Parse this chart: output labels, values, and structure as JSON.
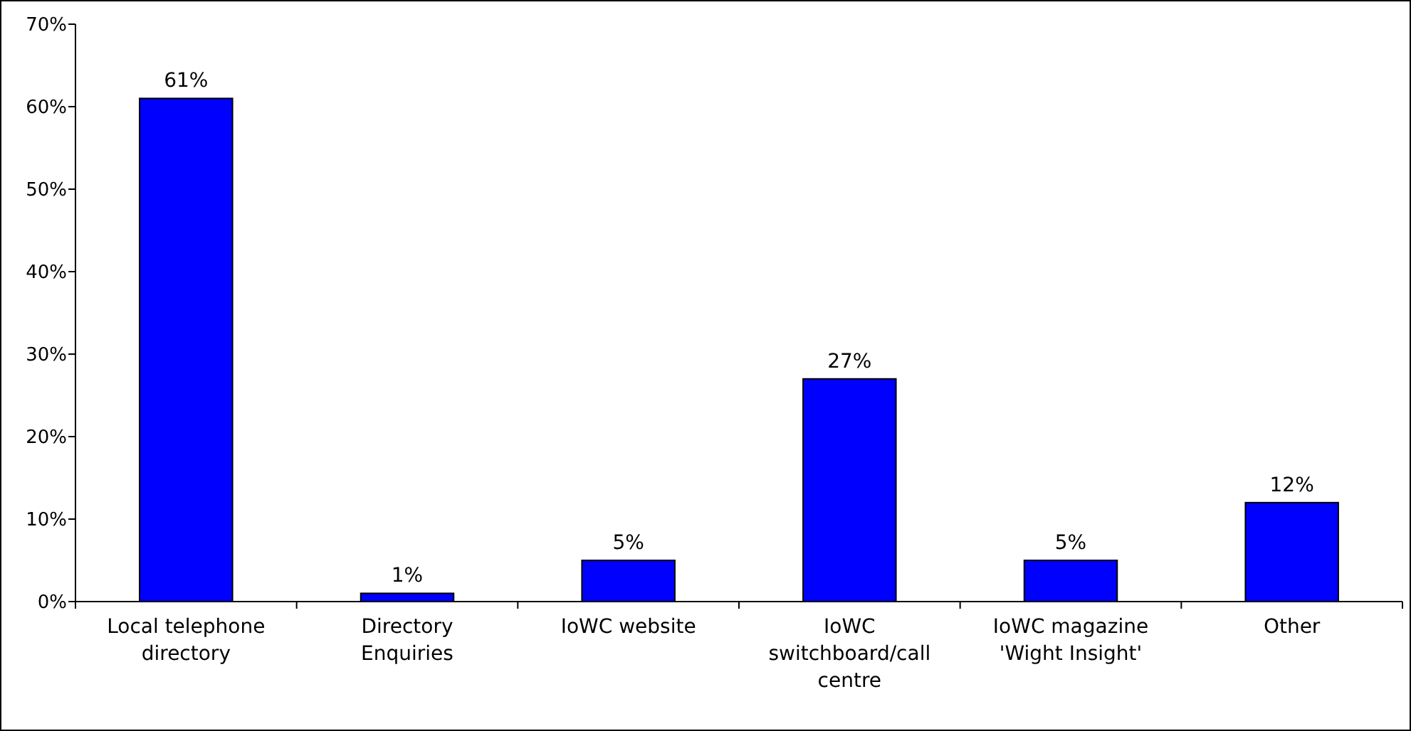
{
  "chart_data": {
    "type": "bar",
    "categories": [
      "Local telephone directory",
      "Directory Enquiries",
      "IoWC website",
      "IoWC switchboard/call centre",
      "IoWC magazine 'Wight Insight'",
      "Other"
    ],
    "values": [
      61,
      1,
      5,
      27,
      5,
      12
    ],
    "color": "#0000ff",
    "ylim": [
      0,
      70
    ],
    "yticks": [
      {
        "value": 0,
        "label": "0%"
      },
      {
        "value": 10,
        "label": "10%"
      },
      {
        "value": 20,
        "label": "20%"
      },
      {
        "value": 30,
        "label": "30%"
      },
      {
        "value": 40,
        "label": "40%"
      },
      {
        "value": 50,
        "label": "50%"
      },
      {
        "value": 60,
        "label": "60%"
      },
      {
        "value": 70,
        "label": "70%"
      }
    ],
    "value_labels": [
      "61%",
      "1%",
      "5%",
      "27%",
      "5%",
      "12%"
    ],
    "grid": false
  }
}
